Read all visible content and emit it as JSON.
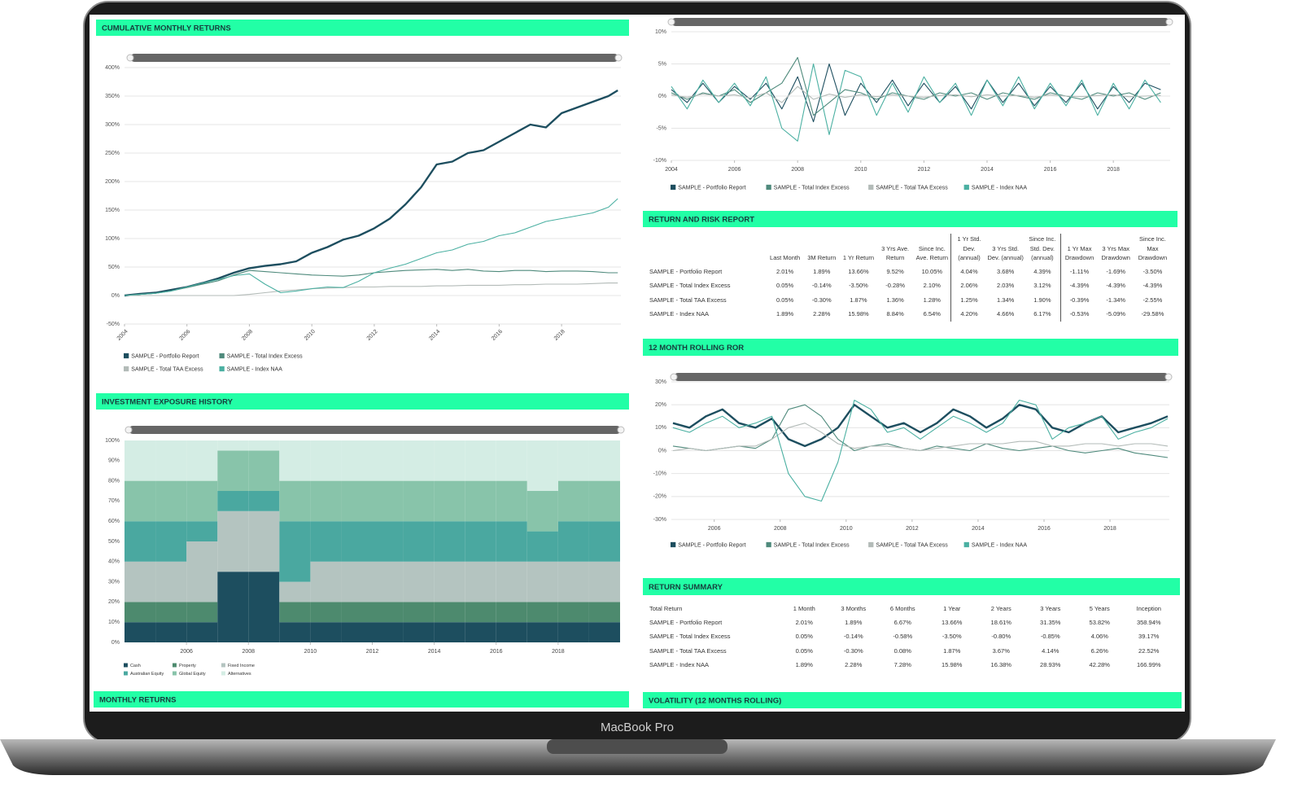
{
  "device_label": "MacBook Pro",
  "chart_data": [
    {
      "type": "line",
      "title": "CUMULATIVE MONTHLY RETURNS",
      "x": [
        2004,
        2004.5,
        2005,
        2005.5,
        2006,
        2006.5,
        2007,
        2007.5,
        2008,
        2008.5,
        2009,
        2009.5,
        2010,
        2010.5,
        2011,
        2011.5,
        2012,
        2012.5,
        2013,
        2013.5,
        2014,
        2014.5,
        2015,
        2015.5,
        2016,
        2016.5,
        2017,
        2017.5,
        2018,
        2018.5,
        2019,
        2019.5,
        2019.8
      ],
      "series": [
        {
          "name": "SAMPLE - Portfolio Report",
          "color": "#1d4e5f",
          "values": [
            0,
            3,
            5,
            10,
            15,
            22,
            30,
            40,
            48,
            52,
            55,
            60,
            75,
            85,
            98,
            105,
            118,
            135,
            160,
            190,
            230,
            235,
            250,
            255,
            270,
            285,
            300,
            295,
            320,
            330,
            340,
            350,
            360
          ]
        },
        {
          "name": "SAMPLE - Total Index Excess",
          "color": "#4f8a7c",
          "values": [
            0,
            2,
            4,
            8,
            14,
            20,
            26,
            36,
            44,
            42,
            40,
            38,
            36,
            35,
            34,
            36,
            40,
            42,
            44,
            45,
            46,
            44,
            46,
            43,
            42,
            44,
            44,
            42,
            43,
            43,
            42,
            40,
            40
          ]
        },
        {
          "name": "SAMPLE - Total TAA Excess",
          "color": "#b3bbb8",
          "values": [
            0,
            0,
            0,
            0,
            0,
            0,
            0,
            0,
            2,
            5,
            8,
            10,
            12,
            13,
            14,
            15,
            15,
            16,
            16,
            16,
            17,
            17,
            18,
            18,
            18,
            19,
            19,
            20,
            20,
            20,
            21,
            22,
            22
          ]
        },
        {
          "name": "SAMPLE - Index NAA",
          "color": "#4bb0a2",
          "values": [
            0,
            2,
            4,
            8,
            15,
            22,
            28,
            35,
            38,
            20,
            5,
            8,
            12,
            15,
            14,
            25,
            40,
            48,
            55,
            65,
            75,
            80,
            90,
            95,
            105,
            110,
            120,
            130,
            135,
            140,
            145,
            155,
            170
          ]
        }
      ],
      "xlim": [
        2004,
        2019.9
      ],
      "xticks": [
        2004,
        2006,
        2008,
        2010,
        2012,
        2014,
        2016,
        2018
      ],
      "ylim": [
        -50,
        400
      ],
      "yticks": [
        {
          "value": -50,
          "label": "-50%"
        },
        {
          "value": 0,
          "label": "0%"
        },
        {
          "value": 50,
          "label": "50%"
        },
        {
          "value": 100,
          "label": "100%"
        },
        {
          "value": 150,
          "label": "150%"
        },
        {
          "value": 200,
          "label": "200%"
        },
        {
          "value": 250,
          "label": "250%"
        },
        {
          "value": 300,
          "label": "300%"
        },
        {
          "value": 350,
          "label": "350%"
        },
        {
          "value": 400,
          "label": "400%"
        }
      ],
      "grid": true,
      "legend": "bottom-left"
    },
    {
      "type": "line",
      "x": [
        2004,
        2004.5,
        2005,
        2005.5,
        2006,
        2006.5,
        2007,
        2007.5,
        2008,
        2008.5,
        2009,
        2009.5,
        2010,
        2010.5,
        2011,
        2011.5,
        2012,
        2012.5,
        2013,
        2013.5,
        2014,
        2014.5,
        2015,
        2015.5,
        2016,
        2016.5,
        2017,
        2017.5,
        2018,
        2018.5,
        2019,
        2019.5
      ],
      "series": [
        {
          "name": "SAMPLE - Portfolio Report",
          "color": "#1d4e5f",
          "values": [
            1,
            -1,
            2,
            -1,
            1.5,
            -0.5,
            2,
            -2,
            3,
            -4,
            5,
            -3,
            2,
            -1,
            2.5,
            -1.5,
            2,
            -1,
            1.5,
            -2,
            2.5,
            -1,
            2,
            -1.5,
            1.5,
            -1,
            2,
            -2,
            1.5,
            -1,
            2,
            1
          ]
        },
        {
          "name": "SAMPLE - Total Index Excess",
          "color": "#4f8a7c",
          "values": [
            0.5,
            -0.5,
            0.5,
            0,
            1,
            -1,
            0.5,
            2,
            6,
            -3,
            -1,
            1,
            0.5,
            -0.5,
            0.5,
            0,
            -0.5,
            0.5,
            0,
            0.5,
            -0.5,
            0.5,
            0,
            -0.5,
            0.5,
            0,
            -0.5,
            0.5,
            0,
            0.5,
            -0.5,
            0.5
          ]
        },
        {
          "name": "SAMPLE - Total TAA Excess",
          "color": "#b3bbb8",
          "values": [
            0.2,
            -0.2,
            0.3,
            0,
            0.2,
            -0.3,
            0.5,
            -1,
            1.5,
            -0.5,
            0.3,
            -0.2,
            0.2,
            -0.1,
            0.2,
            0,
            -0.2,
            0.1,
            0.2,
            -0.1,
            0.2,
            0,
            0.1,
            -0.2,
            0.2,
            0,
            -0.1,
            0.1,
            0.2,
            -0.1,
            0,
            0.1
          ]
        },
        {
          "name": "SAMPLE - Index NAA",
          "color": "#4bb0a2",
          "values": [
            1.5,
            -2,
            2.5,
            -1,
            2,
            -1.5,
            3,
            -5,
            -7,
            5,
            -6,
            4,
            3,
            -3,
            2,
            -2.5,
            3,
            -1,
            2,
            -3,
            2.5,
            -1.5,
            3,
            -2,
            2,
            -1.5,
            2.5,
            -3,
            2,
            -2,
            2.5,
            -1
          ]
        }
      ],
      "xlim": [
        2004,
        2019.8
      ],
      "xticks": [
        2004,
        2006,
        2008,
        2010,
        2012,
        2014,
        2016,
        2018
      ],
      "ylim": [
        -10,
        10
      ],
      "yticks": [
        {
          "value": -10,
          "label": "-10%"
        },
        {
          "value": -5,
          "label": "-5%"
        },
        {
          "value": 0,
          "label": "0%"
        },
        {
          "value": 5,
          "label": "5%"
        },
        {
          "value": 10,
          "label": "10%"
        }
      ],
      "grid": true,
      "legend": "bottom-left"
    },
    {
      "type": "area",
      "stacked": true,
      "title": "INVESTMENT EXPOSURE HISTORY",
      "x": [
        2004,
        2005,
        2006,
        2007,
        2008,
        2009,
        2010,
        2011,
        2012,
        2013,
        2014,
        2015,
        2016,
        2017,
        2018,
        2019
      ],
      "series": [
        {
          "name": "Cash",
          "color": "#1d4e5f",
          "values": [
            10,
            10,
            10,
            35,
            35,
            10,
            10,
            10,
            10,
            10,
            10,
            10,
            10,
            10,
            10,
            10
          ]
        },
        {
          "name": "Property",
          "color": "#4d8a6e",
          "values": [
            10,
            10,
            10,
            0,
            0,
            10,
            10,
            10,
            10,
            10,
            10,
            10,
            10,
            10,
            10,
            10
          ]
        },
        {
          "name": "Fixed Income",
          "color": "#b4c4c0",
          "values": [
            20,
            20,
            30,
            30,
            30,
            10,
            20,
            20,
            20,
            20,
            20,
            20,
            20,
            20,
            20,
            20
          ]
        },
        {
          "name": "Australian Equity",
          "color": "#4aa8a0",
          "values": [
            20,
            20,
            10,
            10,
            10,
            30,
            20,
            20,
            20,
            20,
            20,
            20,
            20,
            15,
            20,
            20
          ]
        },
        {
          "name": "Global Equity",
          "color": "#88c4aa",
          "values": [
            20,
            20,
            20,
            20,
            20,
            20,
            20,
            20,
            20,
            20,
            20,
            20,
            20,
            20,
            20,
            20
          ]
        },
        {
          "name": "Alternatives",
          "color": "#d4ede4",
          "values": [
            20,
            20,
            20,
            5,
            5,
            20,
            20,
            20,
            20,
            20,
            20,
            20,
            20,
            25,
            20,
            20
          ]
        }
      ],
      "xlim": [
        2004,
        2020
      ],
      "xticks": [
        2006,
        2008,
        2010,
        2012,
        2014,
        2016,
        2018
      ],
      "ylim": [
        0,
        100
      ],
      "yticks": [
        {
          "value": 0,
          "label": "0%"
        },
        {
          "value": 10,
          "label": "10%"
        },
        {
          "value": 20,
          "label": "20%"
        },
        {
          "value": 30,
          "label": "30%"
        },
        {
          "value": 40,
          "label": "40%"
        },
        {
          "value": 50,
          "label": "50%"
        },
        {
          "value": 60,
          "label": "60%"
        },
        {
          "value": 70,
          "label": "70%"
        },
        {
          "value": 80,
          "label": "80%"
        },
        {
          "value": 90,
          "label": "90%"
        },
        {
          "value": 100,
          "label": "100%"
        }
      ],
      "grid": false,
      "legend": "bottom-left"
    },
    {
      "type": "line",
      "title": "12 MONTH ROLLING ROR",
      "x": [
        2004.75,
        2005.25,
        2005.75,
        2006.25,
        2006.75,
        2007.25,
        2007.75,
        2008.25,
        2008.75,
        2009.25,
        2009.75,
        2010.25,
        2010.75,
        2011.25,
        2011.75,
        2012.25,
        2012.75,
        2013.25,
        2013.75,
        2014.25,
        2014.75,
        2015.25,
        2015.75,
        2016.25,
        2016.75,
        2017.25,
        2017.75,
        2018.25,
        2018.75,
        2019.25,
        2019.75
      ],
      "series": [
        {
          "name": "SAMPLE - Portfolio Report",
          "color": "#1d4e5f",
          "values": [
            12,
            10,
            15,
            18,
            12,
            10,
            14,
            5,
            2,
            5,
            10,
            20,
            15,
            10,
            12,
            8,
            12,
            18,
            15,
            10,
            14,
            20,
            18,
            10,
            8,
            12,
            15,
            8,
            10,
            12,
            15
          ]
        },
        {
          "name": "SAMPLE - Total Index Excess",
          "color": "#4f8a7c",
          "values": [
            2,
            1,
            0,
            1,
            2,
            1,
            5,
            18,
            20,
            15,
            5,
            0,
            2,
            3,
            1,
            0,
            2,
            1,
            0,
            3,
            1,
            0,
            1,
            2,
            0,
            -1,
            0,
            1,
            -1,
            -2,
            -3
          ]
        },
        {
          "name": "SAMPLE - Total TAA Excess",
          "color": "#b3bbb8",
          "values": [
            0,
            1,
            0,
            1,
            2,
            2,
            5,
            10,
            12,
            8,
            3,
            1,
            2,
            2,
            1,
            0,
            1,
            2,
            3,
            3,
            3,
            4,
            4,
            2,
            2,
            3,
            3,
            2,
            3,
            3,
            2
          ]
        },
        {
          "name": "SAMPLE - Index NAA",
          "color": "#4bb0a2",
          "values": [
            10,
            8,
            12,
            15,
            10,
            12,
            15,
            -10,
            -20,
            -22,
            -5,
            22,
            18,
            8,
            10,
            5,
            10,
            15,
            12,
            8,
            12,
            22,
            20,
            5,
            10,
            12,
            15,
            5,
            8,
            10,
            14
          ]
        }
      ],
      "xlim": [
        2004.7,
        2019.8
      ],
      "xticks": [
        2006,
        2008,
        2010,
        2012,
        2014,
        2016,
        2018
      ],
      "ylim": [
        -30,
        30
      ],
      "yticks": [
        {
          "value": -30,
          "label": "-30%"
        },
        {
          "value": -20,
          "label": "-20%"
        },
        {
          "value": -10,
          "label": "-10%"
        },
        {
          "value": 0,
          "label": "0%"
        },
        {
          "value": 10,
          "label": "10%"
        },
        {
          "value": 20,
          "label": "20%"
        },
        {
          "value": 30,
          "label": "30%"
        }
      ],
      "grid": true,
      "legend": "bottom-left"
    }
  ],
  "tables": [
    {
      "title": "RETURN AND RISK REPORT",
      "columns": [
        "Last Month",
        "3M Return",
        "1 Yr Return",
        "3 Yrs Ave. Return",
        "Since Inc. Ave. Return",
        "1 Yr Std. Dev. (annual)",
        "3 Yrs Std. Dev. (annual)",
        "Since Inc. Std. Dev. (annual)",
        "1 Yr Max Drawdown",
        "3 Yrs Max Drawdown",
        "Since Inc. Max Drawdown"
      ],
      "rows": [
        {
          "label": "SAMPLE - Portfolio Report",
          "values": [
            "2.01%",
            "1.89%",
            "13.66%",
            "9.52%",
            "10.05%",
            "4.04%",
            "3.68%",
            "4.39%",
            "-1.11%",
            "-1.69%",
            "-3.50%"
          ]
        },
        {
          "label": "SAMPLE - Total Index Excess",
          "values": [
            "0.05%",
            "-0.14%",
            "-3.50%",
            "-0.28%",
            "2.10%",
            "2.06%",
            "2.03%",
            "3.12%",
            "-4.39%",
            "-4.39%",
            "-4.39%"
          ]
        },
        {
          "label": "SAMPLE - Total TAA Excess",
          "values": [
            "0.05%",
            "-0.30%",
            "1.87%",
            "1.36%",
            "1.28%",
            "1.25%",
            "1.34%",
            "1.90%",
            "-0.39%",
            "-1.34%",
            "-2.55%"
          ]
        },
        {
          "label": "SAMPLE - Index NAA",
          "values": [
            "1.89%",
            "2.28%",
            "15.98%",
            "8.84%",
            "6.54%",
            "4.20%",
            "4.66%",
            "6.17%",
            "-0.53%",
            "-5.09%",
            "-29.58%"
          ]
        }
      ]
    },
    {
      "title": "RETURN SUMMARY",
      "columns": [
        "Total Return",
        "1 Month",
        "3 Months",
        "6 Months",
        "1 Year",
        "2 Years",
        "3 Years",
        "5 Years",
        "Inception"
      ],
      "rows": [
        {
          "label": "SAMPLE - Portfolio Report",
          "values": [
            "2.01%",
            "1.89%",
            "6.67%",
            "13.66%",
            "18.61%",
            "31.35%",
            "53.82%",
            "358.94%"
          ]
        },
        {
          "label": "SAMPLE - Total Index Excess",
          "values": [
            "0.05%",
            "-0.14%",
            "-0.58%",
            "-3.50%",
            "-0.80%",
            "-0.85%",
            "4.06%",
            "39.17%"
          ]
        },
        {
          "label": "SAMPLE - Total TAA Excess",
          "values": [
            "0.05%",
            "-0.30%",
            "0.08%",
            "1.87%",
            "3.67%",
            "4.14%",
            "6.26%",
            "22.52%"
          ]
        },
        {
          "label": "SAMPLE - Index NAA",
          "values": [
            "1.89%",
            "2.28%",
            "7.28%",
            "15.98%",
            "16.38%",
            "28.93%",
            "42.28%",
            "166.99%"
          ]
        }
      ]
    }
  ],
  "sections": [
    "MONTHLY RETURNS",
    "VOLATILITY (12 MONTHS ROLLING)"
  ]
}
